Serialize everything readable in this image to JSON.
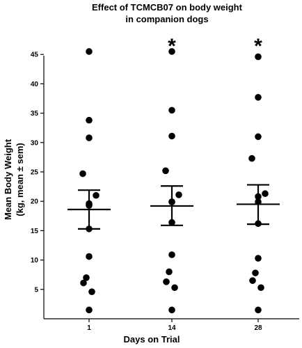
{
  "chart_data": {
    "type": "scatter",
    "title_line1": "Effect of TCMCB07 on body weight",
    "title_line2": "in companion dogs",
    "xlabel": "Days on Trial",
    "ylabel_line1": "Mean Body Weight",
    "ylabel_line2": "(kg, mean ± sem)",
    "categories": [
      "1",
      "14",
      "28"
    ],
    "ylim": [
      0,
      46
    ],
    "yticks": [
      5,
      10,
      15,
      20,
      25,
      30,
      35,
      40,
      45
    ],
    "grid": false,
    "series": [
      {
        "category": "1",
        "points": [
          45.5,
          33.8,
          30.8,
          24.7,
          21.0,
          19.6,
          19.3,
          15.3,
          10.6,
          7.0,
          6.1,
          4.6,
          1.5
        ],
        "mean": 18.6,
        "upper": 21.9,
        "lower": 15.3,
        "significance": ""
      },
      {
        "category": "14",
        "points": [
          45.5,
          35.5,
          31.1,
          25.2,
          21.1,
          19.9,
          19.9,
          16.4,
          10.9,
          8.0,
          6.3,
          5.3,
          1.5
        ],
        "mean": 19.2,
        "upper": 22.6,
        "lower": 15.9,
        "significance": "*"
      },
      {
        "category": "28",
        "points": [
          44.6,
          37.7,
          31.0,
          27.3,
          21.3,
          20.8,
          19.9,
          16.2,
          10.3,
          7.8,
          6.5,
          5.3,
          1.5
        ],
        "mean": 19.5,
        "upper": 22.8,
        "lower": 16.1,
        "significance": "*"
      }
    ]
  }
}
